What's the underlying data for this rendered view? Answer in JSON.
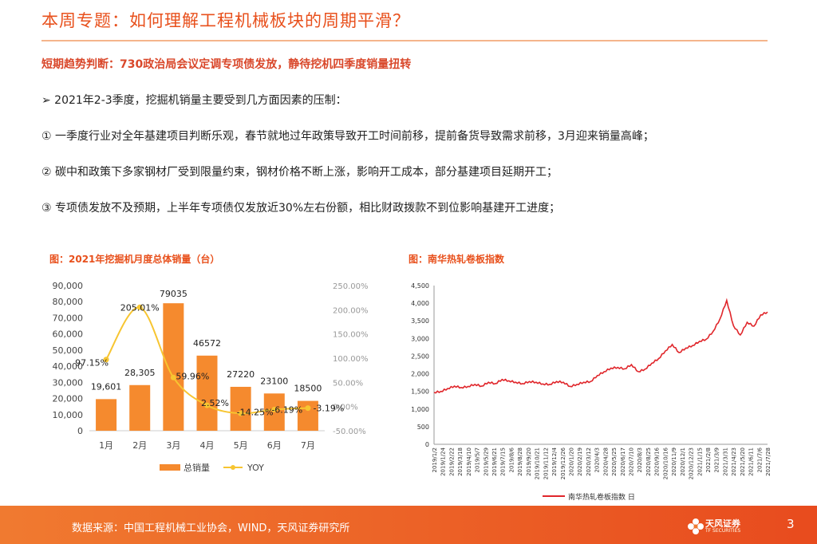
{
  "header": {
    "title": "本周专题：如何理解工程机械板块的周期平滑？",
    "subtitle": "短期趋势判断：730政治局会议定调专项债发放，静待挖机四季度销量扭转"
  },
  "content": {
    "bullet_intro": "➢ 2021年2-3季度，挖掘机销量主要受到几方面因素的压制：",
    "points": [
      "① 一季度行业对全年基建项目判断乐观，春节就地过年政策导致开工时间前移，提前备货导致需求前移，3月迎来销量高峰；",
      "② 碳中和政策下多家钢材厂受到限量约束，钢材价格不断上涨，影响开工成本，部分基建项目延期开工；",
      "③ 专项债发放不及预期，上半年专项债仅发放近30%左右份额，相比财政拨款不到位影响基建开工进度；"
    ]
  },
  "chart_data": [
    {
      "type": "bar",
      "title": "图：2021年挖掘机月度总体销量（台）",
      "categories": [
        "1月",
        "2月",
        "3月",
        "4月",
        "5月",
        "6月",
        "7月"
      ],
      "series": [
        {
          "name": "总销量",
          "type": "bar",
          "axis": "left",
          "values": [
            19601,
            28305,
            79035,
            46572,
            27220,
            23100,
            18500
          ],
          "labels": [
            "19,601",
            "28,305",
            "79035",
            "46572",
            "27220",
            "23100",
            "18500"
          ]
        },
        {
          "name": "YOY",
          "type": "line",
          "axis": "right",
          "values": [
            97.15,
            205.01,
            59.96,
            2.52,
            -14.25,
            -6.19,
            -3.19
          ],
          "labels": [
            "97.15%",
            "205.01%",
            "59.96%",
            "2.52%",
            "-14.25%",
            "-6.19%",
            "-3.19%"
          ]
        }
      ],
      "ylim": [
        0,
        90000
      ],
      "y2lim": [
        -50,
        250
      ],
      "y_ticks": [
        "0",
        "10,000",
        "20,000",
        "30,000",
        "40,000",
        "50,000",
        "60,000",
        "70,000",
        "80,000",
        "90,000"
      ],
      "y2_ticks": [
        "-50.00%",
        "0.00%",
        "50.00%",
        "100.00%",
        "150.00%",
        "200.00%",
        "250.00%"
      ],
      "legend": [
        "总销量",
        "YOY"
      ],
      "colors": {
        "bar": "#f58a2e",
        "line": "#f7c531"
      }
    },
    {
      "type": "line",
      "title": "图：南华热轧卷板指数",
      "ylim": [
        0,
        4500
      ],
      "y_ticks": [
        "0",
        "500",
        "1,000",
        "1,500",
        "2,000",
        "2,500",
        "3,000",
        "3,500",
        "4,000",
        "4,500"
      ],
      "x_ticks": [
        "2019/1/2",
        "2019/1/24",
        "2019/2/22",
        "2019/3/18",
        "2019/4/10",
        "2019/5/7",
        "2019/5/29",
        "2019/6/21",
        "2019/7/15",
        "2019/8/6",
        "2019/8/28",
        "2019/9/20",
        "2019/10/21",
        "2019/11/12",
        "2019/12/4",
        "2019/12/26",
        "2020/1/20",
        "2020/2/19",
        "2020/3/12",
        "2020/4/3",
        "2020/4/28",
        "2020/5/25",
        "2020/6/17",
        "2020/7/10",
        "2020/8/3",
        "2020/8/25",
        "2020/9/16",
        "2020/10/16",
        "2020/11/9",
        "2020/12/1",
        "2020/12/23",
        "2021/1/15",
        "2021/2/8",
        "2021/3/9",
        "2021/3/31",
        "2021/4/23",
        "2021/5/20",
        "2021/6/11",
        "2021/7/6",
        "2021/7/28"
      ],
      "series": [
        {
          "name": "南华热轧卷板指数 日",
          "values": [
            1470,
            1500,
            1580,
            1650,
            1610,
            1640,
            1700,
            1650,
            1760,
            1720,
            1840,
            1800,
            1760,
            1720,
            1780,
            1760,
            1710,
            1700,
            1780,
            1760,
            1640,
            1700,
            1760,
            1780,
            1950,
            2060,
            2160,
            2180,
            2140,
            2260,
            2060,
            2130,
            2300,
            2430,
            2650,
            2830,
            2600,
            2730,
            2800,
            2920,
            2980,
            3200,
            3550,
            4080,
            3360,
            3100,
            3460,
            3350,
            3670,
            3750
          ]
        }
      ],
      "legend": [
        "南华热轧卷板指数 日"
      ],
      "colors": {
        "line": "#e0262b"
      }
    }
  ],
  "footer": {
    "source": "数据来源：中国工程机械工业协会，WIND，天风证券研究所",
    "logo_text": "天风证券",
    "logo_sub": "TF SECURITIES",
    "page_number": "3"
  }
}
